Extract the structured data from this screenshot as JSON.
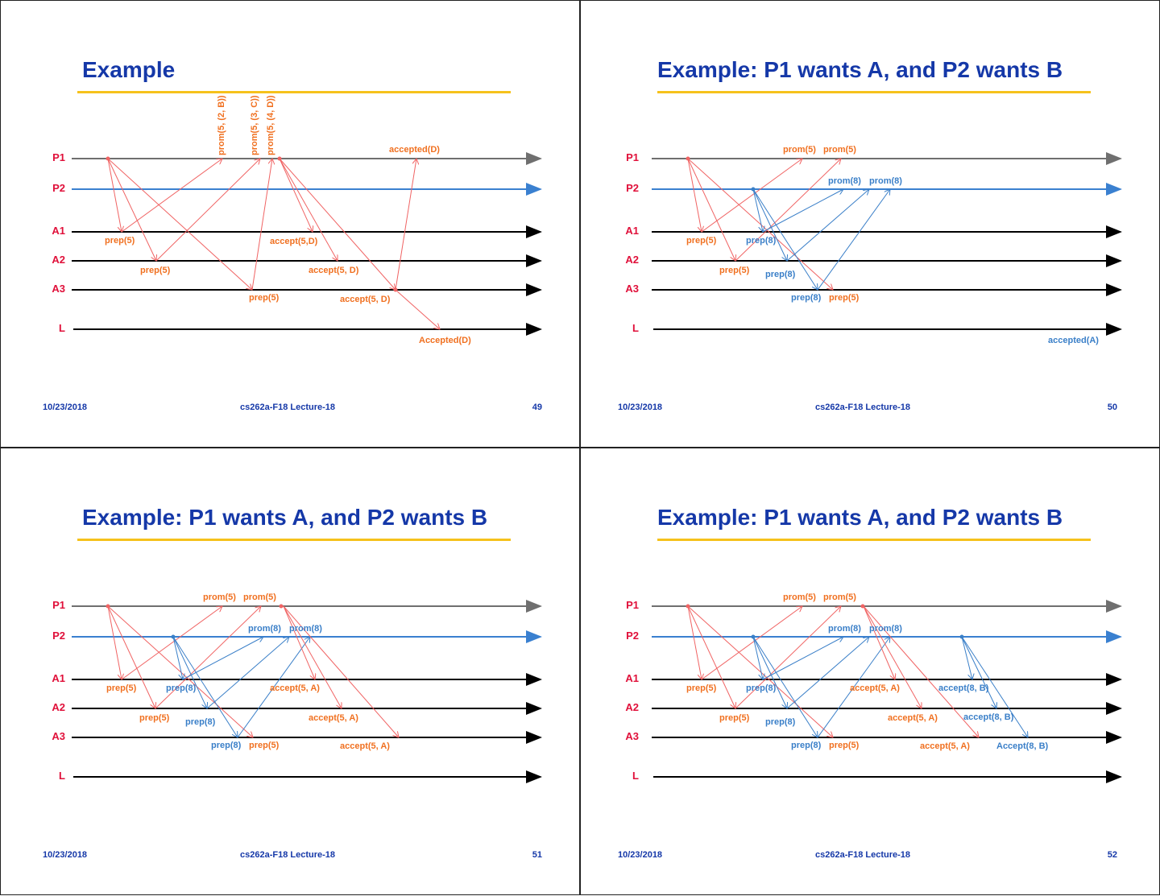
{
  "footer": {
    "date": "10/23/2018",
    "course": "cs262a-F18 Lecture-18"
  },
  "lanes": [
    "P1",
    "P2",
    "A1",
    "A2",
    "A3",
    "L"
  ],
  "colors": {
    "title": "#1538a8",
    "rule": "#f6c21c",
    "lane_label": "#e0103a",
    "p1_line": "#6f6f6f",
    "p2_line": "#3a80d0",
    "acceptor_line": "#000000",
    "red_msg": "#f06464",
    "blue_msg": "#3a7fc8",
    "orange_text": "#f07020",
    "blue_text": "#3a7fc8"
  },
  "slides": [
    {
      "title": "Example",
      "page": "49",
      "labels": [
        "prom(5, (2, B))",
        "prom(5, (3, C))",
        "prom(5, (4, D))",
        "accepted(D)",
        "prep(5)",
        "prep(5)",
        "prep(5)",
        "accept(5,D)",
        "accept(5, D)",
        "accept(5, D)",
        "Accepted(D)"
      ]
    },
    {
      "title": "Example: P1 wants A, and P2 wants B",
      "page": "50",
      "labels": [
        "prom(5)",
        "prom(5)",
        "prom(8)",
        "prom(8)",
        "prep(5)",
        "prep(8)",
        "prep(5)",
        "prep(8)",
        "prep(8)",
        "prep(5)",
        "accepted(A)"
      ]
    },
    {
      "title": "Example: P1 wants A, and P2 wants B",
      "page": "51",
      "labels": [
        "prom(5)",
        "prom(5)",
        "prom(8)",
        "prom(8)",
        "prep(5)",
        "prep(8)",
        "prep(5)",
        "prep(8)",
        "prep(8)",
        "prep(5)",
        "accept(5, A)",
        "accept(5, A)",
        "accept(5, A)"
      ]
    },
    {
      "title": "Example: P1 wants A, and P2 wants B",
      "page": "52",
      "labels": [
        "prom(5)",
        "prom(5)",
        "prom(8)",
        "prom(8)",
        "prep(5)",
        "prep(8)",
        "prep(5)",
        "prep(8)",
        "prep(8)",
        "prep(5)",
        "accept(5, A)",
        "accept(5, A)",
        "accept(5, A)",
        "accept(8, B)",
        "accept(8, B)",
        "Accept(8, B)"
      ]
    }
  ]
}
